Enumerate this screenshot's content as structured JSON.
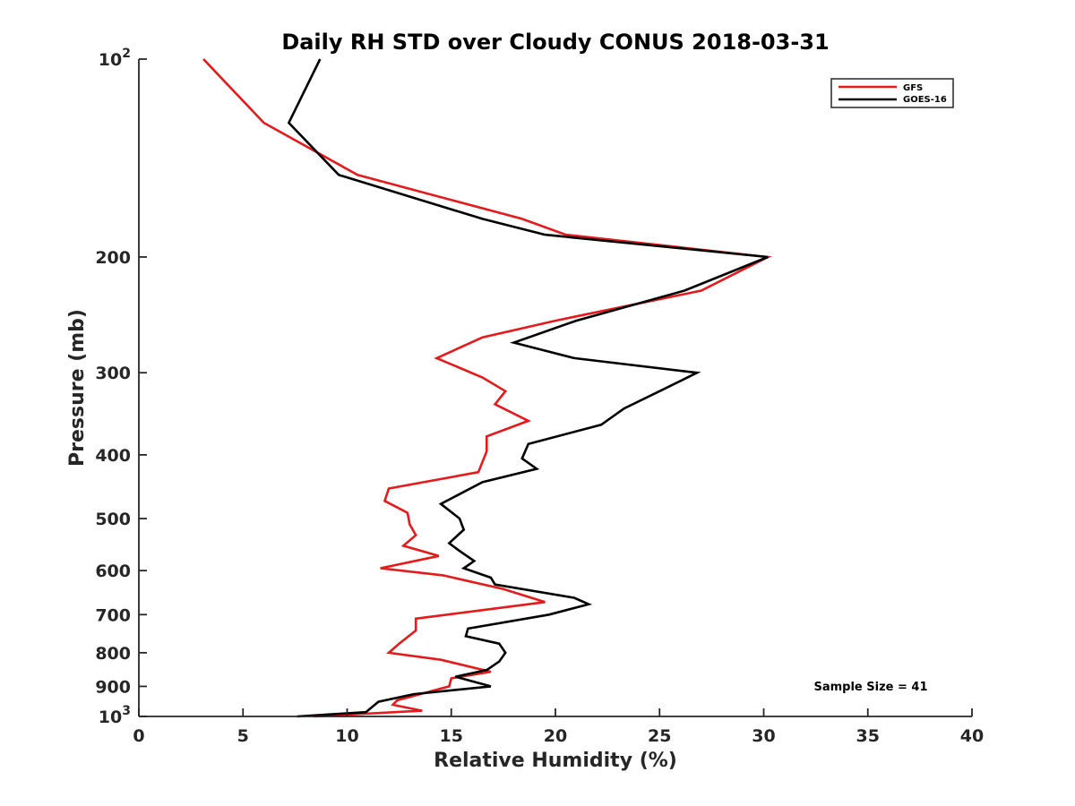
{
  "chart_data": {
    "type": "line",
    "title": "Daily RH STD over Cloudy CONUS 2018-03-31",
    "xlabel": "Relative Humidity (%)",
    "ylabel": "Pressure (mb)",
    "xlim": [
      0,
      40
    ],
    "ylim": [
      100,
      1000
    ],
    "y_scale": "log",
    "y_reversed": true,
    "x_ticks": [
      0,
      5,
      10,
      15,
      20,
      25,
      30,
      35,
      40
    ],
    "x_tick_labels": [
      "0",
      "5",
      "10",
      "15",
      "20",
      "25",
      "30",
      "35",
      "40"
    ],
    "y_ticks": [
      100,
      200,
      300,
      400,
      500,
      600,
      700,
      800,
      900,
      1000
    ],
    "y_tick_labels": [
      {
        "base": "10",
        "exp": "2"
      },
      {
        "base": "200",
        "exp": ""
      },
      {
        "base": "300",
        "exp": ""
      },
      {
        "base": "400",
        "exp": ""
      },
      {
        "base": "500",
        "exp": ""
      },
      {
        "base": "600",
        "exp": ""
      },
      {
        "base": "700",
        "exp": ""
      },
      {
        "base": "800",
        "exp": ""
      },
      {
        "base": "900",
        "exp": ""
      },
      {
        "base": "10",
        "exp": "3"
      }
    ],
    "grid": false,
    "legend_position": "top-right",
    "annotation": "Sample Size = 41",
    "series": [
      {
        "name": "GFS",
        "color": "#e41a1c",
        "points": [
          [
            3.1,
            100
          ],
          [
            6.0,
            125
          ],
          [
            10.5,
            150
          ],
          [
            18.4,
            175
          ],
          [
            20.5,
            185
          ],
          [
            30.2,
            200
          ],
          [
            27.0,
            225
          ],
          [
            20.0,
            250
          ],
          [
            16.5,
            265
          ],
          [
            14.3,
            285
          ],
          [
            16.5,
            305
          ],
          [
            17.6,
            320
          ],
          [
            17.1,
            335
          ],
          [
            18.7,
            355
          ],
          [
            16.7,
            375
          ],
          [
            16.7,
            395
          ],
          [
            16.3,
            425
          ],
          [
            12.0,
            450
          ],
          [
            11.8,
            470
          ],
          [
            12.9,
            490
          ],
          [
            13.0,
            510
          ],
          [
            13.3,
            530
          ],
          [
            12.7,
            550
          ],
          [
            14.4,
            570
          ],
          [
            11.6,
            595
          ],
          [
            14.6,
            610
          ],
          [
            17.5,
            640
          ],
          [
            19.5,
            670
          ],
          [
            13.3,
            710
          ],
          [
            13.3,
            740
          ],
          [
            12.5,
            775
          ],
          [
            12.0,
            800
          ],
          [
            14.5,
            820
          ],
          [
            16.9,
            855
          ],
          [
            15.0,
            875
          ],
          [
            14.9,
            900
          ],
          [
            12.4,
            945
          ],
          [
            12.2,
            960
          ],
          [
            13.6,
            980
          ],
          [
            8.4,
            1000
          ]
        ]
      },
      {
        "name": "GOES-16",
        "color": "#000000",
        "points": [
          [
            8.7,
            100
          ],
          [
            7.2,
            125
          ],
          [
            9.6,
            150
          ],
          [
            16.5,
            175
          ],
          [
            19.5,
            185
          ],
          [
            30.2,
            200
          ],
          [
            26.2,
            225
          ],
          [
            21.0,
            250
          ],
          [
            18.0,
            270
          ],
          [
            20.9,
            285
          ],
          [
            26.8,
            300
          ],
          [
            25.0,
            320
          ],
          [
            23.3,
            340
          ],
          [
            22.2,
            360
          ],
          [
            18.7,
            385
          ],
          [
            18.4,
            405
          ],
          [
            19.1,
            420
          ],
          [
            16.5,
            440
          ],
          [
            14.5,
            475
          ],
          [
            15.4,
            500
          ],
          [
            15.6,
            520
          ],
          [
            14.9,
            545
          ],
          [
            15.4,
            560
          ],
          [
            16.1,
            580
          ],
          [
            15.6,
            595
          ],
          [
            16.9,
            615
          ],
          [
            17.1,
            630
          ],
          [
            20.9,
            660
          ],
          [
            21.6,
            675
          ],
          [
            19.7,
            700
          ],
          [
            15.8,
            735
          ],
          [
            15.7,
            755
          ],
          [
            17.3,
            775
          ],
          [
            17.6,
            800
          ],
          [
            17.3,
            825
          ],
          [
            16.7,
            850
          ],
          [
            15.2,
            870
          ],
          [
            16.9,
            900
          ],
          [
            13.2,
            925
          ],
          [
            11.5,
            950
          ],
          [
            10.9,
            985
          ],
          [
            7.6,
            1000
          ]
        ]
      }
    ]
  }
}
